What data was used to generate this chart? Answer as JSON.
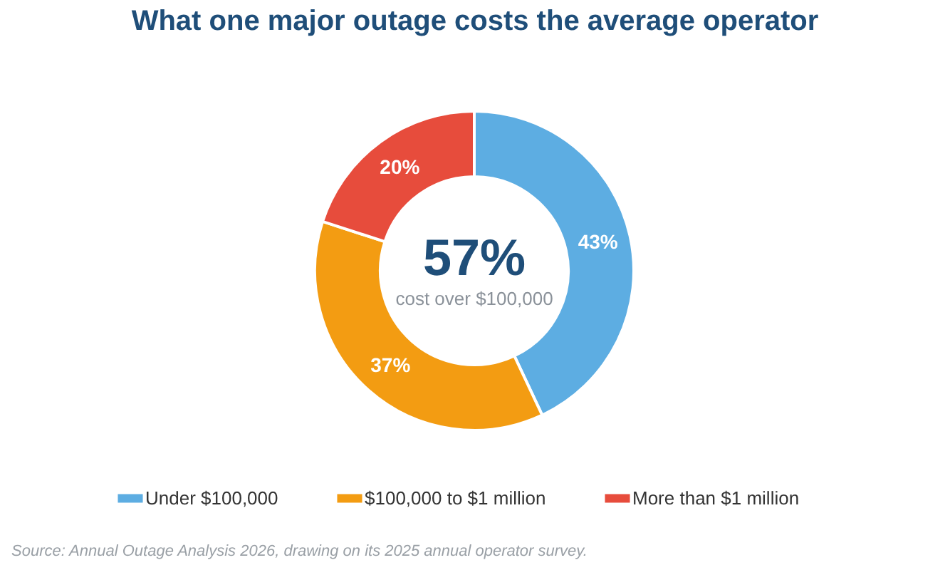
{
  "chart_data": {
    "type": "donut",
    "title": "What one major outage costs the average operator",
    "categories": [
      "Under $100,000",
      "$100,000 to $1 million",
      "More than $1 million"
    ],
    "values": [
      43,
      37,
      20
    ],
    "colors": [
      "#5dade2",
      "#f39c12",
      "#e74c3c"
    ],
    "value_labels": [
      "43%",
      "37%",
      "20%"
    ],
    "legend": "bottom",
    "annotations": [
      "57%",
      "cost over $100,000",
      "Source: Annual Outage Analysis 2026, drawing on its 2025 annual operator survey."
    ]
  }
}
